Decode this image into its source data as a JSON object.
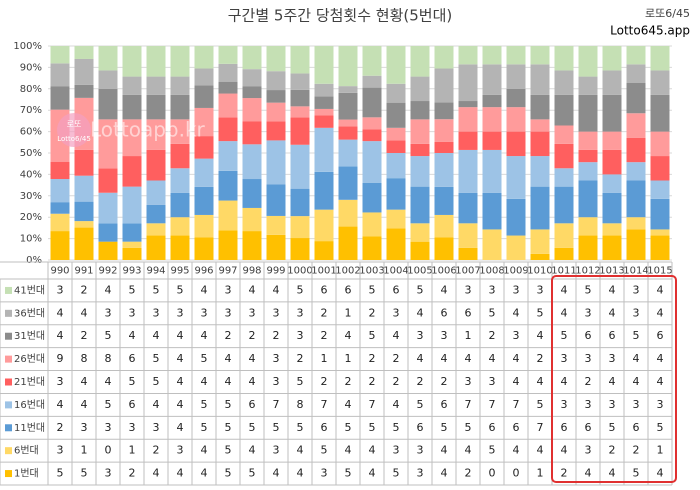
{
  "chart_data": {
    "type": "stacked-bar",
    "stacking": "percent",
    "title": "구간별 5주간 당첨횟수 현황(5번대)",
    "annotations": [
      "로또6/45",
      "Lotto645.app",
      "Lottoapp.kr",
      "로또",
      "Lotto6/45"
    ],
    "categories": [
      "990",
      "991",
      "992",
      "993",
      "994",
      "995",
      "996",
      "997",
      "998",
      "999",
      "1000",
      "1001",
      "1002",
      "1003",
      "1004",
      "1005",
      "1006",
      "1007",
      "1008",
      "1009",
      "1010",
      "1011",
      "1012",
      "1013",
      "1014",
      "1015"
    ],
    "ylim": [
      0,
      100
    ],
    "yticks": [
      {
        "value": 0,
        "label": "0%"
      },
      {
        "value": 10,
        "label": "10%"
      },
      {
        "value": 20,
        "label": "20%"
      },
      {
        "value": 30,
        "label": "30%"
      },
      {
        "value": 40,
        "label": "40%"
      },
      {
        "value": 50,
        "label": "50%"
      },
      {
        "value": 60,
        "label": "60%"
      },
      {
        "value": 70,
        "label": "70%"
      },
      {
        "value": 80,
        "label": "80%"
      },
      {
        "value": 90,
        "label": "90%"
      },
      {
        "value": 100,
        "label": "100%"
      }
    ],
    "grid": true,
    "series": [
      {
        "name": "41번대",
        "color": "#c5e0b4",
        "values": [
          3,
          2,
          4,
          5,
          5,
          5,
          4,
          3,
          4,
          4,
          5,
          6,
          6,
          5,
          6,
          5,
          4,
          3,
          3,
          3,
          3,
          4,
          5,
          4,
          3,
          4
        ]
      },
      {
        "name": "36번대",
        "color": "#b4b4b4",
        "values": [
          4,
          4,
          3,
          3,
          3,
          3,
          3,
          3,
          3,
          3,
          3,
          2,
          1,
          2,
          3,
          4,
          6,
          6,
          5,
          4,
          5,
          4,
          3,
          4,
          3,
          4
        ]
      },
      {
        "name": "31번대",
        "color": "#8c8c8c",
        "values": [
          4,
          2,
          5,
          4,
          4,
          4,
          4,
          2,
          2,
          2,
          3,
          2,
          4,
          5,
          4,
          3,
          3,
          1,
          2,
          3,
          4,
          5,
          6,
          6,
          5,
          6
        ]
      },
      {
        "name": "26번대",
        "color": "#ff9b9b",
        "values": [
          9,
          8,
          8,
          6,
          5,
          4,
          5,
          4,
          4,
          3,
          2,
          1,
          1,
          2,
          2,
          4,
          4,
          4,
          4,
          4,
          2,
          3,
          3,
          3,
          4,
          4
        ]
      },
      {
        "name": "21번대",
        "color": "#ff5f5f",
        "values": [
          3,
          4,
          4,
          5,
          5,
          4,
          4,
          4,
          4,
          3,
          5,
          2,
          2,
          2,
          2,
          2,
          2,
          3,
          3,
          4,
          4,
          4,
          2,
          4,
          4,
          4
        ]
      },
      {
        "name": "16번대",
        "color": "#9dc3e6",
        "values": [
          4,
          4,
          5,
          6,
          4,
          4,
          5,
          5,
          6,
          7,
          8,
          7,
          4,
          7,
          4,
          5,
          6,
          7,
          7,
          7,
          5,
          3,
          3,
          3,
          3,
          3
        ]
      },
      {
        "name": "11번대",
        "color": "#5b9bd5",
        "values": [
          2,
          3,
          3,
          3,
          3,
          4,
          5,
          5,
          5,
          5,
          5,
          6,
          5,
          5,
          5,
          6,
          5,
          5,
          6,
          6,
          7,
          6,
          6,
          5,
          6,
          5
        ]
      },
      {
        "name": "6번대",
        "color": "#ffd966",
        "values": [
          3,
          1,
          0,
          1,
          2,
          3,
          4,
          5,
          4,
          3,
          4,
          5,
          4,
          4,
          3,
          3,
          4,
          4,
          5,
          4,
          4,
          4,
          3,
          2,
          2,
          1
        ]
      },
      {
        "name": "1번대",
        "color": "#ffc000",
        "values": [
          5,
          5,
          3,
          2,
          4,
          4,
          4,
          5,
          5,
          4,
          4,
          3,
          5,
          4,
          5,
          3,
          4,
          2,
          0,
          0,
          1,
          2,
          4,
          4,
          5,
          4
        ]
      }
    ]
  }
}
